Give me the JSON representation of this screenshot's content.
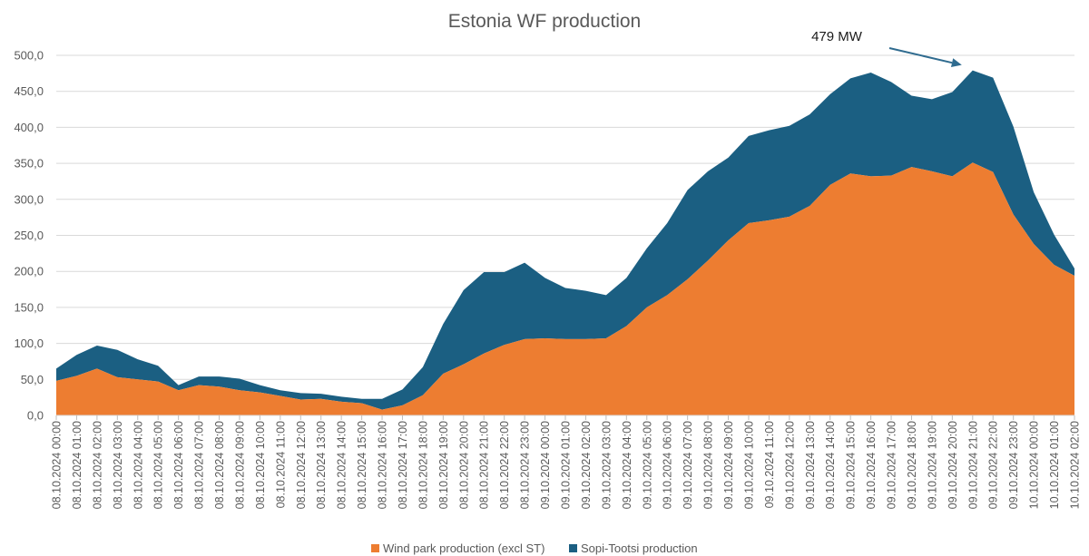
{
  "chart_data": {
    "type": "area",
    "stacked": true,
    "title": "Estonia WF production",
    "xlabel": "",
    "ylabel": "",
    "ylim": [
      0,
      500
    ],
    "yticks": [
      "0,0",
      "50,0",
      "100,0",
      "150,0",
      "200,0",
      "250,0",
      "300,0",
      "350,0",
      "400,0",
      "450,0",
      "500,0"
    ],
    "categories": [
      "08.10.2024 00:00",
      "08.10.2024 01:00",
      "08.10.2024 02:00",
      "08.10.2024 03:00",
      "08.10.2024 04:00",
      "08.10.2024 05:00",
      "08.10.2024 06:00",
      "08.10.2024 07:00",
      "08.10.2024 08:00",
      "08.10.2024 09:00",
      "08.10.2024 10:00",
      "08.10.2024 11:00",
      "08.10.2024 12:00",
      "08.10.2024 13:00",
      "08.10.2024 14:00",
      "08.10.2024 15:00",
      "08.10.2024 16:00",
      "08.10.2024 17:00",
      "08.10.2024 18:00",
      "08.10.2024 19:00",
      "08.10.2024 20:00",
      "08.10.2024 21:00",
      "08.10.2024 22:00",
      "08.10.2024 23:00",
      "09.10.2024 00:00",
      "09.10.2024 01:00",
      "09.10.2024 02:00",
      "09.10.2024 03:00",
      "09.10.2024 04:00",
      "09.10.2024 05:00",
      "09.10.2024 06:00",
      "09.10.2024 07:00",
      "09.10.2024 08:00",
      "09.10.2024 09:00",
      "09.10.2024 10:00",
      "09.10.2024 11:00",
      "09.10.2024 12:00",
      "09.10.2024 13:00",
      "09.10.2024 14:00",
      "09.10.2024 15:00",
      "09.10.2024 16:00",
      "09.10.2024 17:00",
      "09.10.2024 18:00",
      "09.10.2024 19:00",
      "09.10.2024 20:00",
      "09.10.2024 21:00",
      "09.10.2024 22:00",
      "09.10.2024 23:00",
      "10.10.2024 00:00",
      "10.10.2024 01:00",
      "10.10.2024 02:00"
    ],
    "series": [
      {
        "name": "Wind park production (excl ST)",
        "color": "#ed7d31",
        "values": [
          48,
          55,
          65,
          53,
          50,
          47,
          35,
          42,
          40,
          35,
          32,
          27,
          22,
          23,
          19,
          17,
          8,
          14,
          28,
          58,
          71,
          86,
          98,
          106,
          107,
          106,
          106,
          107,
          124,
          150,
          167,
          189,
          215,
          243,
          267,
          271,
          276,
          291,
          320,
          336,
          332,
          333,
          345,
          339,
          332,
          351,
          338,
          279,
          238,
          209,
          194
        ]
      },
      {
        "name": "Sopi-Tootsi production",
        "color": "#1b5f82",
        "values": [
          17,
          29,
          32,
          38,
          28,
          22,
          7,
          12,
          14,
          16,
          10,
          8,
          9,
          7,
          7,
          6,
          15,
          22,
          39,
          69,
          103,
          113,
          101,
          106,
          84,
          71,
          67,
          60,
          67,
          82,
          100,
          124,
          124,
          115,
          121,
          125,
          126,
          127,
          126,
          132,
          144,
          130,
          99,
          100,
          117,
          128,
          131,
          122,
          72,
          42,
          10
        ]
      }
    ],
    "totals": [
      65,
      84,
      97,
      91,
      78,
      69,
      42,
      54,
      54,
      51,
      42,
      35,
      31,
      30,
      26,
      23,
      23,
      36,
      67,
      127,
      174,
      199,
      199,
      212,
      191,
      177,
      173,
      167,
      191,
      232,
      267,
      313,
      339,
      358,
      388,
      396,
      402,
      418,
      446,
      468,
      476,
      463,
      444,
      439,
      449,
      479,
      469,
      401,
      310,
      251,
      204
    ],
    "annotations": [
      {
        "text": "479 MW",
        "target_category": "09.10.2024 21:00",
        "target_value": 479
      }
    ],
    "legend": {
      "position": "bottom"
    },
    "grid": true
  }
}
